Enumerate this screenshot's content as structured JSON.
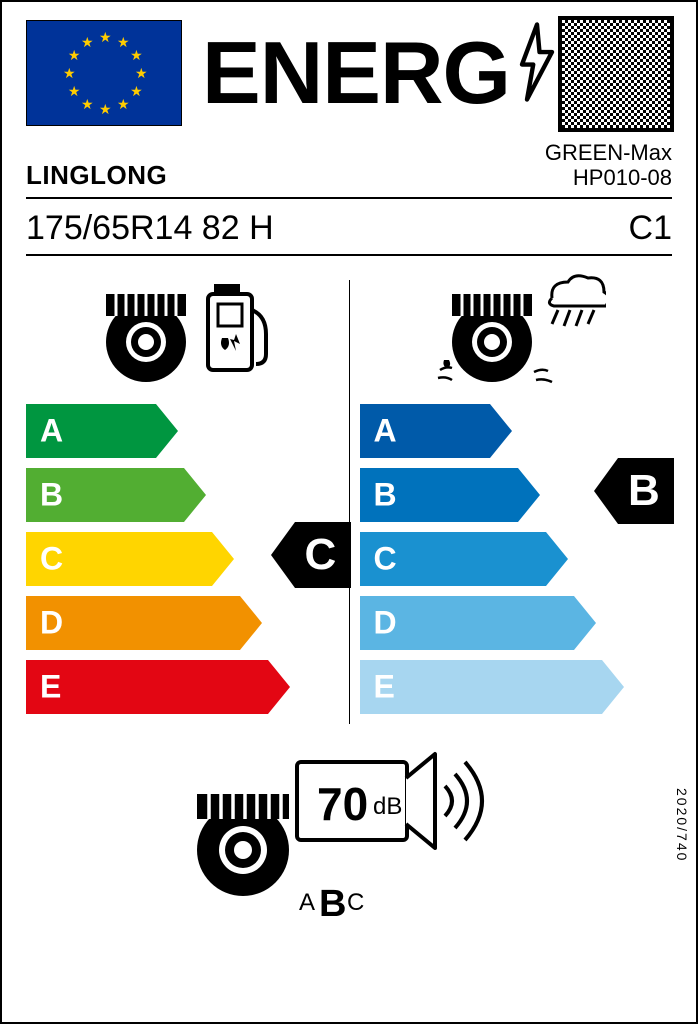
{
  "header": {
    "title": "ENERG",
    "flag_bg": "#003399",
    "star_color": "#ffcc00"
  },
  "brand": "LINGLONG",
  "model_line1": "GREEN-Max",
  "model_line2": "HP010-08",
  "tyre_size": "175/65R14 82 H",
  "tyre_class": "C1",
  "fuel": {
    "grades": [
      "A",
      "B",
      "C",
      "D",
      "E"
    ],
    "colors": [
      "#009640",
      "#52ae32",
      "#ffd500",
      "#f29100",
      "#e30613"
    ],
    "widths": [
      130,
      158,
      186,
      214,
      242
    ],
    "rating": "C",
    "rating_index": 2
  },
  "wet": {
    "grades": [
      "A",
      "B",
      "C",
      "D",
      "E"
    ],
    "colors": [
      "#005aa9",
      "#0072bc",
      "#1a91d0",
      "#5bb5e3",
      "#a7d6f0"
    ],
    "widths": [
      130,
      158,
      186,
      214,
      242
    ],
    "rating": "B",
    "rating_index": 1
  },
  "noise": {
    "db_value": "70",
    "db_unit": "dB",
    "class": "B",
    "scale_before": "A",
    "scale_after": "C"
  },
  "badge_fill": "#000000",
  "badge_text": "#ffffff",
  "bar_label_color": "#ffffff",
  "regulation": "2020/740"
}
